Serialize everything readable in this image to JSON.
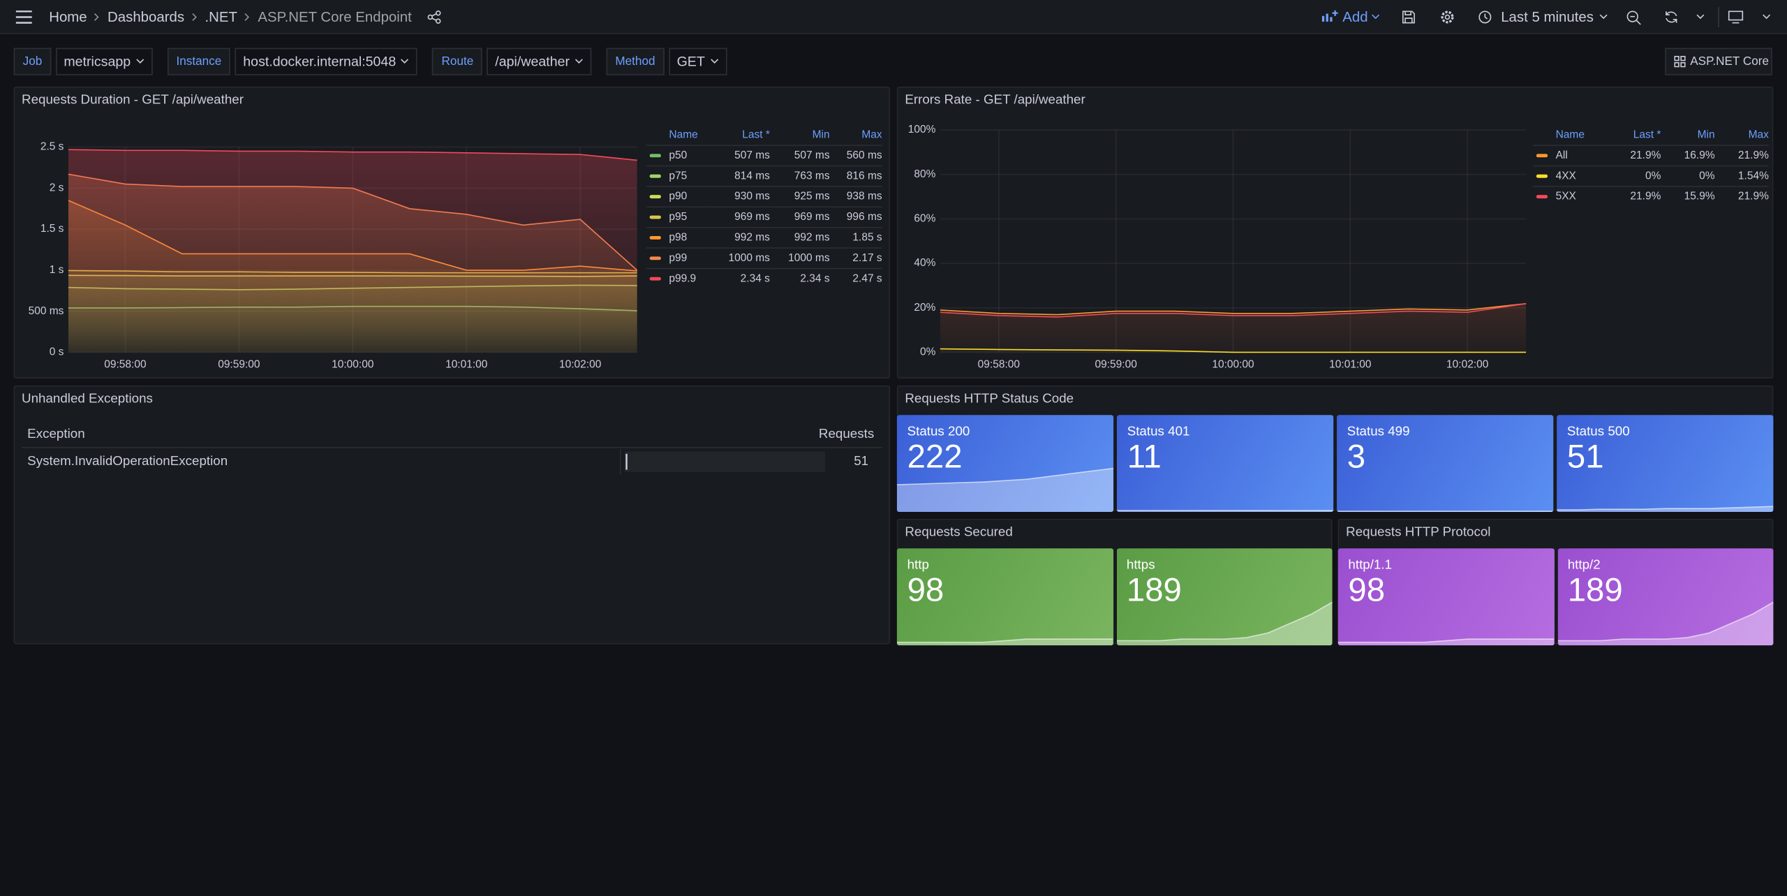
{
  "header": {
    "breadcrumbs": [
      "Home",
      "Dashboards",
      ".NET",
      "ASP.NET Core Endpoint"
    ],
    "add_button": "Add",
    "time_range": "Last 5 minutes"
  },
  "variables": [
    {
      "label": "Job",
      "value": "metricsapp"
    },
    {
      "label": "Instance",
      "value": "host.docker.internal:5048"
    },
    {
      "label": "Route",
      "value": "/api/weather"
    },
    {
      "label": "Method",
      "value": "GET"
    }
  ],
  "dashboard_link": "ASP.NET Core",
  "panels": {
    "duration": {
      "chart_data": {
        "type": "line",
        "title": "Requests Duration - GET /api/weather",
        "x": [
          "09:57:30",
          "09:58:00",
          "09:58:30",
          "09:59:00",
          "09:59:30",
          "10:00:00",
          "10:00:30",
          "10:01:00",
          "10:01:30",
          "10:02:00",
          "10:02:30"
        ],
        "xlim": [
          "09:57:30",
          "10:02:30"
        ],
        "xticks": [
          "09:58:00",
          "09:59:00",
          "10:00:00",
          "10:01:00",
          "10:02:00"
        ],
        "ylim": [
          0,
          2.5
        ],
        "yticks": [
          {
            "value": 0,
            "label": "0 s"
          },
          {
            "value": 0.5,
            "label": "500 ms"
          },
          {
            "value": 1,
            "label": "1 s"
          },
          {
            "value": 1.5,
            "label": "1.5 s"
          },
          {
            "value": 2,
            "label": "2 s"
          },
          {
            "value": 2.5,
            "label": "2.5 s"
          }
        ],
        "grid": true,
        "legend_columns": [
          "Name",
          "Last *",
          "Min",
          "Max"
        ],
        "series": [
          {
            "name": "p50",
            "color": "#73bf69",
            "values": [
              0.54,
              0.54,
              0.545,
              0.55,
              0.55,
              0.56,
              0.56,
              0.56,
              0.55,
              0.53,
              0.507
            ],
            "last": "507 ms",
            "min": "507 ms",
            "max": "560 ms"
          },
          {
            "name": "p75",
            "color": "#a0d468",
            "values": [
              0.79,
              0.775,
              0.77,
              0.763,
              0.77,
              0.78,
              0.79,
              0.8,
              0.81,
              0.816,
              0.814
            ],
            "last": "814 ms",
            "min": "763 ms",
            "max": "816 ms"
          },
          {
            "name": "p90",
            "color": "#c8dc5a",
            "values": [
              0.938,
              0.935,
              0.93,
              0.93,
              0.93,
              0.93,
              0.93,
              0.928,
              0.926,
              0.925,
              0.93
            ],
            "last": "930 ms",
            "min": "925 ms",
            "max": "938 ms"
          },
          {
            "name": "p95",
            "color": "#d8c84a",
            "values": [
              0.996,
              0.99,
              0.98,
              0.98,
              0.975,
              0.975,
              0.97,
              0.97,
              0.97,
              0.97,
              0.969
            ],
            "last": "969 ms",
            "min": "969 ms",
            "max": "996 ms"
          },
          {
            "name": "p98",
            "color": "#ff9830",
            "values": [
              1.85,
              1.55,
              1.2,
              1.2,
              1.2,
              1.2,
              1.2,
              1.0,
              1.0,
              1.05,
              0.992
            ],
            "last": "992 ms",
            "min": "992 ms",
            "max": "1.85 s"
          },
          {
            "name": "p99",
            "color": "#f2894c",
            "values": [
              2.17,
              2.05,
              2.02,
              2.02,
              2.02,
              2.0,
              1.75,
              1.68,
              1.55,
              1.62,
              1.0
            ],
            "last": "1000 ms",
            "min": "1000 ms",
            "max": "2.17 s"
          },
          {
            "name": "p99.9",
            "color": "#f2495c",
            "values": [
              2.47,
              2.46,
              2.46,
              2.45,
              2.45,
              2.44,
              2.44,
              2.43,
              2.42,
              2.41,
              2.34
            ],
            "last": "2.34 s",
            "min": "2.34 s",
            "max": "2.47 s"
          }
        ]
      }
    },
    "errors": {
      "chart_data": {
        "type": "line",
        "title": "Errors Rate - GET /api/weather",
        "x": [
          "09:57:30",
          "09:58:00",
          "09:58:30",
          "09:59:00",
          "09:59:30",
          "10:00:00",
          "10:00:30",
          "10:01:00",
          "10:01:30",
          "10:02:00",
          "10:02:30"
        ],
        "xlim": [
          "09:57:30",
          "10:02:30"
        ],
        "xticks": [
          "09:58:00",
          "09:59:00",
          "10:00:00",
          "10:01:00",
          "10:02:00"
        ],
        "ylim": [
          0,
          100
        ],
        "yticks": [
          {
            "value": 0,
            "label": "0%"
          },
          {
            "value": 20,
            "label": "20%"
          },
          {
            "value": 40,
            "label": "40%"
          },
          {
            "value": 60,
            "label": "60%"
          },
          {
            "value": 80,
            "label": "80%"
          },
          {
            "value": 100,
            "label": "100%"
          }
        ],
        "grid": true,
        "legend_columns": [
          "Name",
          "Last *",
          "Min",
          "Max"
        ],
        "series": [
          {
            "name": "All",
            "color": "#ff9830",
            "values": [
              19.0,
              17.5,
              16.9,
              18.5,
              18.5,
              17.5,
              17.5,
              18.5,
              19.5,
              19.0,
              21.9
            ],
            "last": "21.9%",
            "min": "16.9%",
            "max": "21.9%"
          },
          {
            "name": "4XX",
            "color": "#fade2a",
            "values": [
              1.54,
              1.3,
              1.1,
              1.0,
              0.6,
              0,
              0,
              0,
              0,
              0,
              0
            ],
            "last": "0%",
            "min": "0%",
            "max": "1.54%"
          },
          {
            "name": "5XX",
            "color": "#f2495c",
            "values": [
              18.0,
              16.5,
              15.9,
              17.5,
              17.5,
              16.5,
              16.5,
              17.5,
              18.5,
              18.0,
              21.9
            ],
            "last": "21.9%",
            "min": "15.9%",
            "max": "21.9%"
          }
        ]
      }
    },
    "exceptions": {
      "title": "Unhandled Exceptions",
      "columns": [
        "Exception",
        "Requests"
      ],
      "rows": [
        {
          "exception": "System.InvalidOperationException",
          "requests": 51
        }
      ]
    },
    "status_codes": {
      "title": "Requests HTTP Status Code",
      "colors": [
        "#3b5fd6",
        "#5b8ff2"
      ],
      "stats": [
        {
          "name": "Status 200",
          "value": 222,
          "sparkline": [
            40,
            41,
            42,
            43,
            44,
            46,
            48,
            52,
            56,
            60,
            64
          ]
        },
        {
          "name": "Status 401",
          "value": 11,
          "sparkline": [
            2,
            2,
            2,
            2,
            2,
            2,
            2,
            2,
            2,
            2,
            2
          ]
        },
        {
          "name": "Status 499",
          "value": 3,
          "sparkline": [
            1,
            1,
            1,
            1,
            1,
            1,
            1,
            1,
            1,
            1,
            1
          ]
        },
        {
          "name": "Status 500",
          "value": 51,
          "sparkline": [
            3,
            3,
            4,
            4,
            4,
            5,
            5,
            5,
            6,
            7,
            8
          ]
        }
      ]
    },
    "secured": {
      "title": "Requests Secured",
      "colors": [
        "#5a9c45",
        "#7ab55f"
      ],
      "stats": [
        {
          "name": "http",
          "value": 98,
          "sparkline": [
            2,
            2,
            2,
            2,
            2,
            3,
            4,
            4,
            4,
            4,
            4
          ]
        },
        {
          "name": "https",
          "value": 189,
          "sparkline": [
            3,
            3,
            3,
            4,
            4,
            4,
            5,
            8,
            14,
            20,
            28
          ]
        }
      ]
    },
    "protocol": {
      "title": "Requests HTTP Protocol",
      "colors": [
        "#9a4fd0",
        "#b66de0"
      ],
      "stats": [
        {
          "name": "http/1.1",
          "value": 98,
          "sparkline": [
            2,
            2,
            2,
            2,
            2,
            3,
            4,
            4,
            4,
            4,
            4
          ]
        },
        {
          "name": "http/2",
          "value": 189,
          "sparkline": [
            3,
            3,
            3,
            4,
            4,
            4,
            5,
            8,
            14,
            20,
            28
          ]
        }
      ]
    }
  }
}
